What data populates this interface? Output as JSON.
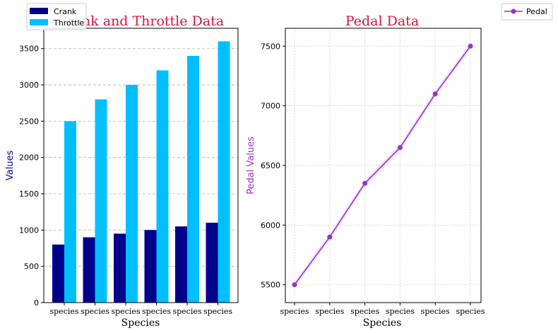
{
  "chart_data": [
    {
      "type": "bar",
      "title": "Crank and Throttle Data",
      "xlabel": "Species",
      "ylabel": "Values",
      "categories": [
        "species",
        "species",
        "species",
        "species",
        "species",
        "species"
      ],
      "series": [
        {
          "name": "Crank",
          "values": [
            800,
            900,
            950,
            1000,
            1050,
            1100
          ],
          "color": "#00008b"
        },
        {
          "name": "Throttle",
          "values": [
            2500,
            2800,
            3000,
            3200,
            3400,
            3600
          ],
          "color": "#00bfff"
        }
      ],
      "ylim": [
        0,
        3780
      ],
      "yticks": [
        0,
        500,
        1000,
        1500,
        2000,
        2500,
        3000,
        3500
      ],
      "ylabel_color": "#00008b",
      "grid": "y-dashed",
      "legend": "top-left"
    },
    {
      "type": "line",
      "title": "Pedal Data",
      "xlabel": "Species",
      "ylabel": "Pedal Values",
      "categories": [
        "species",
        "species",
        "species",
        "species",
        "species",
        "species"
      ],
      "series": [
        {
          "name": "Pedal",
          "values": [
            5500,
            5900,
            6350,
            6650,
            7100,
            7500
          ],
          "color": "#9932cc"
        }
      ],
      "ylim": [
        5350,
        7650
      ],
      "yticks": [
        5500,
        6000,
        6500,
        7000,
        7500
      ],
      "ylabel_color": "#9932cc",
      "grid": "both-dotted",
      "band": true,
      "legend": "top-right"
    }
  ]
}
